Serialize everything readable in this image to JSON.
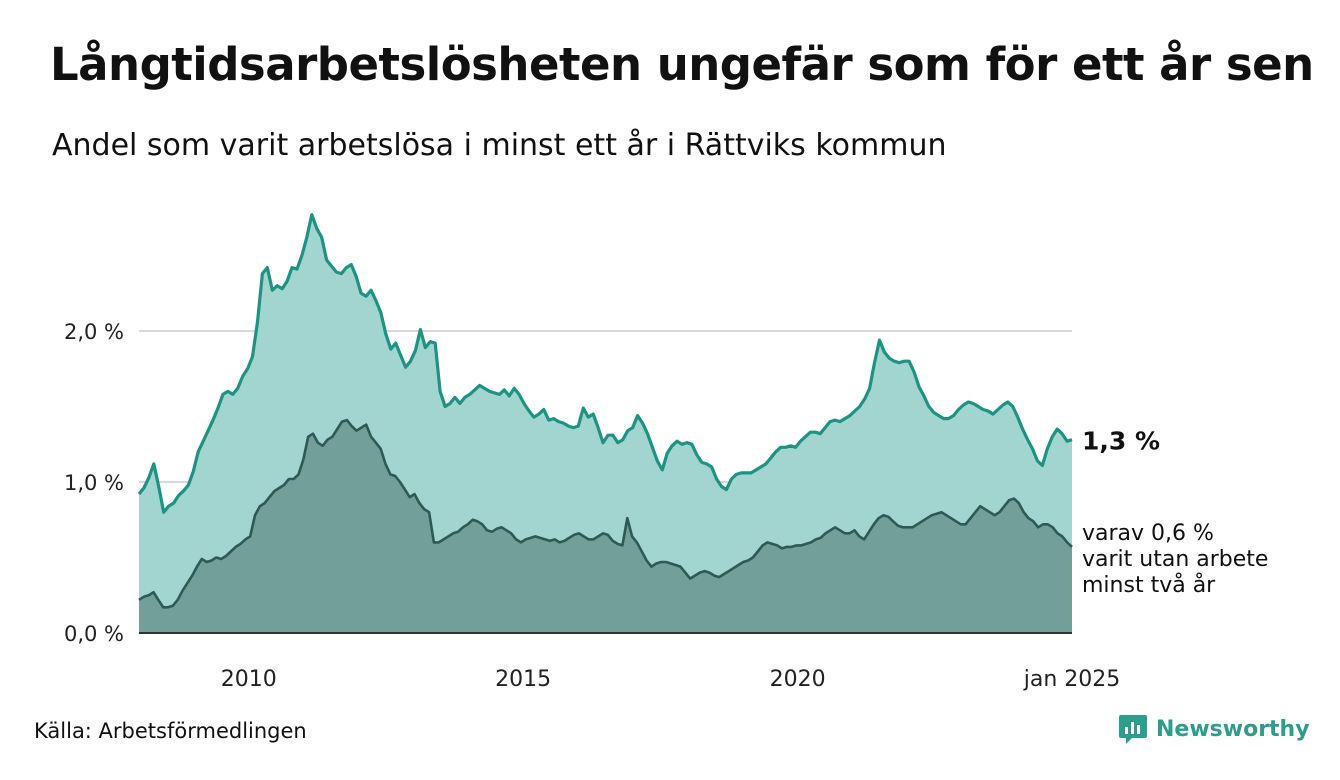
{
  "title": "Långtidsarbetslösheten ungefär som för ett år sen",
  "subtitle": "Andel som varit arbetslösa i minst ett år i Rättviks kommun",
  "source": "Källa: Arbetsförmedlingen",
  "brand": "Newsworthy",
  "colors": {
    "series1_line": "#1d9384",
    "series1_fill": "#a3d5d0",
    "series2_line": "#2d5a55",
    "series2_fill": "#729f98",
    "grid": "#d9d9d9",
    "baseline": "#333333",
    "brand": "#2e9d8c"
  },
  "chart_data": {
    "type": "area",
    "x_start": "2008-01",
    "x_end": "2025-01",
    "xticks": [
      "2010",
      "2015",
      "2020",
      "jan 2025"
    ],
    "ytick_labels": [
      "0,0 %",
      "1,0 %",
      "2,0 %"
    ],
    "yticks": [
      0,
      1,
      2
    ],
    "ylim": [
      0,
      2.8
    ],
    "grid": true,
    "series": [
      {
        "values": [
          0.92,
          0.96,
          1.03,
          1.12,
          0.97,
          0.8,
          0.84,
          0.86,
          0.91,
          0.94,
          0.98,
          1.07,
          1.2,
          1.27,
          1.34,
          1.41,
          1.49,
          1.58,
          1.6,
          1.58,
          1.62,
          1.7,
          1.75,
          1.83,
          2.06,
          2.38,
          2.42,
          2.27,
          2.3,
          2.28,
          2.33,
          2.42,
          2.41,
          2.5,
          2.62,
          2.77,
          2.68,
          2.62,
          2.47,
          2.43,
          2.39,
          2.38,
          2.42,
          2.44,
          2.36,
          2.25,
          2.23,
          2.27,
          2.2,
          2.12,
          1.98,
          1.88,
          1.92,
          1.84,
          1.76,
          1.8,
          1.87,
          2.01,
          1.89,
          1.93,
          1.92,
          1.6,
          1.5,
          1.52,
          1.56,
          1.52,
          1.56,
          1.58,
          1.61,
          1.64,
          1.62,
          1.6,
          1.59,
          1.58,
          1.61,
          1.57,
          1.62,
          1.58,
          1.52,
          1.47,
          1.43,
          1.45,
          1.48,
          1.41,
          1.42,
          1.4,
          1.39,
          1.37,
          1.36,
          1.37,
          1.49,
          1.43,
          1.45,
          1.36,
          1.26,
          1.31,
          1.31,
          1.26,
          1.28,
          1.34,
          1.36,
          1.44,
          1.39,
          1.32,
          1.23,
          1.14,
          1.08,
          1.19,
          1.24,
          1.27,
          1.25,
          1.26,
          1.25,
          1.18,
          1.13,
          1.12,
          1.1,
          1.02,
          0.97,
          0.95,
          1.02,
          1.05,
          1.06,
          1.06,
          1.06,
          1.08,
          1.1,
          1.12,
          1.16,
          1.2,
          1.23,
          1.23,
          1.24,
          1.23,
          1.27,
          1.3,
          1.33,
          1.33,
          1.32,
          1.36,
          1.4,
          1.41,
          1.4,
          1.42,
          1.44,
          1.47,
          1.5,
          1.55,
          1.62,
          1.79,
          1.94,
          1.86,
          1.82,
          1.8,
          1.79,
          1.8,
          1.8,
          1.73,
          1.63,
          1.57,
          1.5,
          1.46,
          1.44,
          1.42,
          1.42,
          1.44,
          1.48,
          1.51,
          1.53,
          1.52,
          1.5,
          1.48,
          1.47,
          1.45,
          1.48,
          1.51,
          1.53,
          1.5,
          1.43,
          1.35,
          1.28,
          1.22,
          1.14,
          1.11,
          1.22,
          1.3,
          1.35,
          1.32,
          1.27,
          1.28
        ],
        "line_color": "#1d9384",
        "fill_color": "#a3d5d0"
      },
      {
        "values": [
          0.22,
          0.24,
          0.25,
          0.27,
          0.22,
          0.17,
          0.17,
          0.18,
          0.22,
          0.28,
          0.33,
          0.38,
          0.44,
          0.49,
          0.47,
          0.48,
          0.5,
          0.49,
          0.51,
          0.54,
          0.57,
          0.59,
          0.62,
          0.64,
          0.78,
          0.84,
          0.86,
          0.9,
          0.94,
          0.96,
          0.98,
          1.02,
          1.02,
          1.05,
          1.15,
          1.3,
          1.32,
          1.26,
          1.24,
          1.28,
          1.3,
          1.35,
          1.4,
          1.41,
          1.37,
          1.34,
          1.36,
          1.38,
          1.3,
          1.26,
          1.22,
          1.12,
          1.05,
          1.04,
          1.0,
          0.95,
          0.9,
          0.92,
          0.86,
          0.82,
          0.8,
          0.6,
          0.6,
          0.62,
          0.64,
          0.66,
          0.67,
          0.7,
          0.72,
          0.75,
          0.74,
          0.72,
          0.68,
          0.67,
          0.69,
          0.7,
          0.68,
          0.66,
          0.62,
          0.6,
          0.62,
          0.63,
          0.64,
          0.63,
          0.62,
          0.61,
          0.62,
          0.6,
          0.61,
          0.63,
          0.65,
          0.66,
          0.64,
          0.62,
          0.62,
          0.64,
          0.66,
          0.65,
          0.61,
          0.59,
          0.58,
          0.76,
          0.64,
          0.6,
          0.54,
          0.48,
          0.44,
          0.46,
          0.47,
          0.47,
          0.46,
          0.45,
          0.44,
          0.4,
          0.36,
          0.38,
          0.4,
          0.41,
          0.4,
          0.38,
          0.37,
          0.39,
          0.41,
          0.43,
          0.45,
          0.47,
          0.48,
          0.5,
          0.54,
          0.58,
          0.6,
          0.59,
          0.58,
          0.56,
          0.57,
          0.57,
          0.58,
          0.58,
          0.59,
          0.6,
          0.62,
          0.63,
          0.66,
          0.68,
          0.7,
          0.68,
          0.66,
          0.66,
          0.68,
          0.64,
          0.62,
          0.67,
          0.72,
          0.76,
          0.78,
          0.77,
          0.74,
          0.71,
          0.7,
          0.7,
          0.7,
          0.72,
          0.74,
          0.76,
          0.78,
          0.79,
          0.8,
          0.78,
          0.76,
          0.74,
          0.72,
          0.72,
          0.76,
          0.8,
          0.84,
          0.82,
          0.8,
          0.78,
          0.8,
          0.84,
          0.88,
          0.89,
          0.86,
          0.8,
          0.76,
          0.74,
          0.7,
          0.72,
          0.72,
          0.7,
          0.66,
          0.64,
          0.6,
          0.57
        ],
        "line_color": "#2d5a55",
        "fill_color": "#729f98"
      }
    ],
    "annotations": [
      {
        "text": "1,3 %",
        "bold": true,
        "series": 0
      },
      {
        "lines": [
          "varav 0,6 %",
          "varit utan arbete",
          "minst två år"
        ],
        "bold": false,
        "series": 1
      }
    ]
  }
}
